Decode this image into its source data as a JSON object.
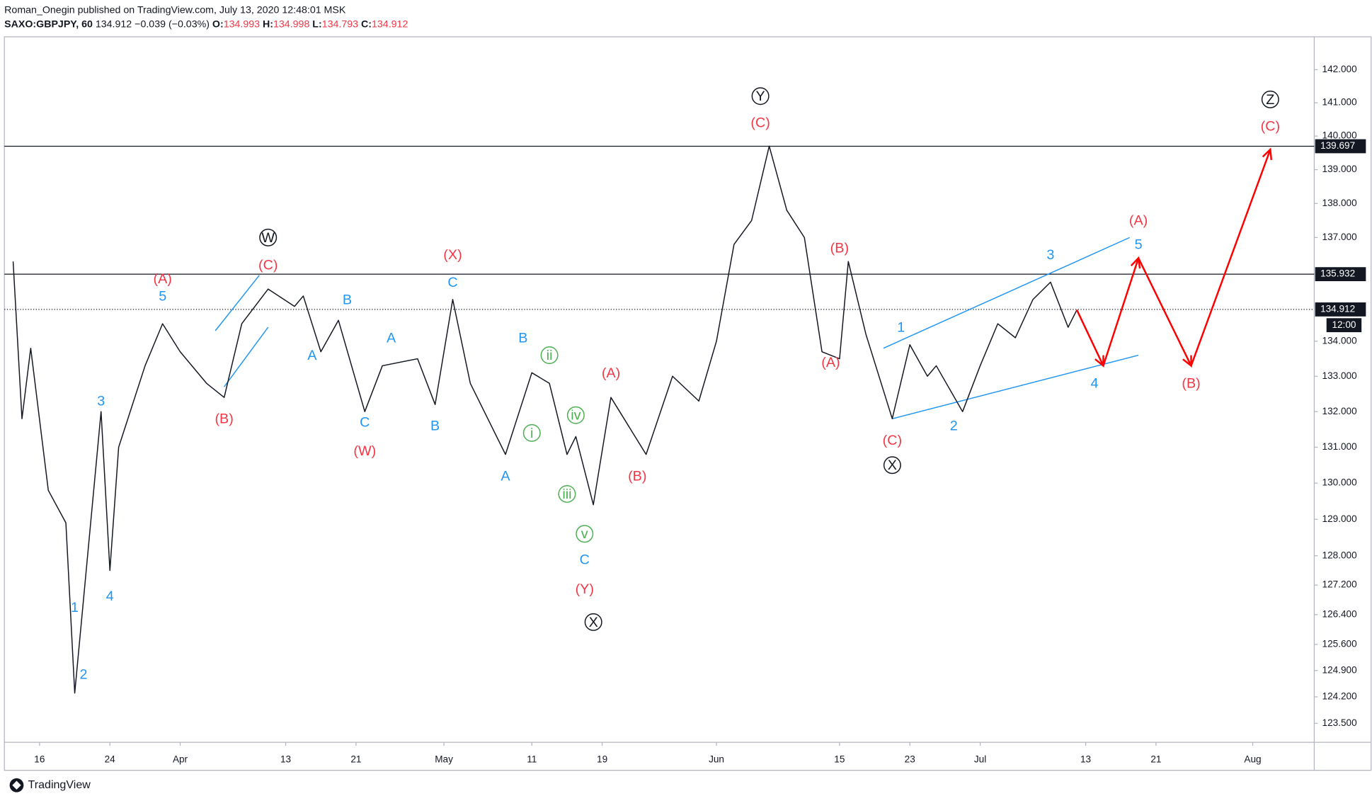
{
  "header": {
    "author_line": "Roman_Onegin published on TradingView.com, July 13, 2020 12:48:01 MSK",
    "symbol": "SAXO:GBPJPY, 60",
    "last": "134.912",
    "change": "−0.039 (−0.03%)",
    "ohlc": [
      {
        "label": "O:",
        "value": "134.993"
      },
      {
        "label": "H:",
        "value": "134.998"
      },
      {
        "label": "L:",
        "value": "134.793"
      },
      {
        "label": "C:",
        "value": "134.912"
      }
    ]
  },
  "footer": {
    "brand": "TradingView"
  },
  "chart_data": {
    "type": "line",
    "log_scale": true,
    "xlim": [
      "Mar 12",
      "Aug 8"
    ],
    "ylim": [
      123.0,
      143.0
    ],
    "xticks": [
      {
        "value": "Mar 16",
        "label": "16"
      },
      {
        "value": "Mar 24",
        "label": "24"
      },
      {
        "value": "Apr 1",
        "label": "Apr"
      },
      {
        "value": "Apr 13",
        "label": "13"
      },
      {
        "value": "Apr 21",
        "label": "21"
      },
      {
        "value": "May 1",
        "label": "May"
      },
      {
        "value": "May 11",
        "label": "11"
      },
      {
        "value": "May 19",
        "label": "19"
      },
      {
        "value": "Jun 1",
        "label": "Jun"
      },
      {
        "value": "Jun 15",
        "label": "15"
      },
      {
        "value": "Jun 23",
        "label": "23"
      },
      {
        "value": "Jul 1",
        "label": "Jul"
      },
      {
        "value": "Jul 13",
        "label": "13"
      },
      {
        "value": "Jul 21",
        "label": "21"
      },
      {
        "value": "Aug 1",
        "label": "Aug"
      }
    ],
    "yticks": [
      {
        "value": 142,
        "label": "142.000"
      },
      {
        "value": 141,
        "label": "141.000"
      },
      {
        "value": 140,
        "label": "140.000"
      },
      {
        "value": 139,
        "label": "139.000"
      },
      {
        "value": 138,
        "label": "138.000"
      },
      {
        "value": 137,
        "label": "137.000"
      },
      {
        "value": 134,
        "label": "134.000"
      },
      {
        "value": 133,
        "label": "133.000"
      },
      {
        "value": 132,
        "label": "132.000"
      },
      {
        "value": 131,
        "label": "131.000"
      },
      {
        "value": 130,
        "label": "130.000"
      },
      {
        "value": 129,
        "label": "129.000"
      },
      {
        "value": 128,
        "label": "128.000"
      },
      {
        "value": 127.2,
        "label": "127.200"
      },
      {
        "value": 126.4,
        "label": "126.400"
      },
      {
        "value": 125.6,
        "label": "125.600"
      },
      {
        "value": 124.9,
        "label": "124.900"
      },
      {
        "value": 124.2,
        "label": "124.200"
      },
      {
        "value": 123.5,
        "label": "123.500"
      }
    ],
    "series": [
      {
        "name": "GBPJPY",
        "color": "#131722",
        "x": [
          "Mar 13",
          "Mar 14",
          "Mar 15",
          "Mar 17",
          "Mar 19",
          "Mar 20",
          "Mar 21",
          "Mar 23",
          "Mar 24",
          "Mar 25",
          "Mar 28",
          "Mar 30",
          "Apr 1",
          "Apr 4",
          "Apr 6",
          "Apr 8",
          "Apr 11",
          "Apr 14",
          "Apr 15",
          "Apr 17",
          "Apr 19",
          "Apr 22",
          "Apr 24",
          "Apr 28",
          "Apr 30",
          "May 2",
          "May 4",
          "May 8",
          "May 11",
          "May 13",
          "May 15",
          "May 16",
          "May 18",
          "May 20",
          "May 24",
          "May 27",
          "May 30",
          "Jun 1",
          "Jun 3",
          "Jun 5",
          "Jun 7",
          "Jun 9",
          "Jun 11",
          "Jun 13",
          "Jun 15",
          "Jun 16",
          "Jun 18",
          "Jun 21",
          "Jun 23",
          "Jun 25",
          "Jun 26",
          "Jun 29",
          "Jul 1",
          "Jul 3",
          "Jul 5",
          "Jul 7",
          "Jul 9",
          "Jul 11",
          "Jul 12"
        ],
        "values": [
          136.3,
          131.8,
          133.8,
          129.8,
          128.9,
          124.3,
          126.8,
          132.0,
          127.6,
          131.0,
          133.3,
          134.5,
          133.7,
          132.8,
          132.4,
          134.5,
          135.5,
          135.0,
          135.3,
          133.7,
          134.6,
          132.0,
          133.3,
          133.5,
          132.2,
          135.2,
          132.8,
          130.8,
          133.1,
          132.8,
          130.8,
          131.3,
          129.4,
          132.4,
          130.8,
          133.0,
          132.3,
          134.0,
          136.8,
          137.5,
          139.7,
          137.8,
          137.0,
          133.7,
          133.5,
          136.3,
          134.2,
          131.8,
          133.9,
          133.0,
          133.3,
          132.0,
          133.3,
          134.5,
          134.1,
          135.2,
          135.7,
          134.4,
          134.9
        ]
      },
      {
        "name": "Projection",
        "color": "#ff0000",
        "x": [
          "Jul 12",
          "Jul 15",
          "Jul 19",
          "Jul 25",
          "Aug 3"
        ],
        "values": [
          134.9,
          133.3,
          136.4,
          133.3,
          139.6
        ]
      }
    ],
    "trendlines": [
      {
        "color": "#2196f3",
        "x": [
          "Apr 5",
          "Apr 10"
        ],
        "values": [
          134.3,
          135.9
        ]
      },
      {
        "color": "#2196f3",
        "x": [
          "Apr 6",
          "Apr 11"
        ],
        "values": [
          132.7,
          134.4
        ]
      },
      {
        "color": "#2196f3",
        "x": [
          "Jun 20",
          "Jul 18"
        ],
        "values": [
          133.8,
          137.0
        ]
      },
      {
        "color": "#2196f3",
        "x": [
          "Jun 21",
          "Jul 19"
        ],
        "values": [
          131.8,
          133.6
        ]
      }
    ],
    "hlines": [
      {
        "value": 139.697,
        "style": "solid",
        "label": "139.697"
      },
      {
        "value": 135.932,
        "style": "solid",
        "label": "135.932"
      },
      {
        "value": 134.912,
        "style": "dotted",
        "label": "134.912",
        "time": "12:00"
      }
    ],
    "annotation_groups": [
      {
        "color": "#f23645",
        "circled": false,
        "labels": [
          {
            "text": "(A)",
            "x": "Mar 30",
            "y": 135.8
          },
          {
            "text": "(C)",
            "x": "Apr 11",
            "y": 136.2
          },
          {
            "text": "(B)",
            "x": "Apr 6",
            "y": 131.8
          },
          {
            "text": "(X)",
            "x": "May 2",
            "y": 136.5
          },
          {
            "text": "(W)",
            "x": "Apr 22",
            "y": 130.9
          },
          {
            "text": "(A)",
            "x": "May 20",
            "y": 133.1
          },
          {
            "text": "(B)",
            "x": "May 23",
            "y": 130.2
          },
          {
            "text": "(Y)",
            "x": "May 17",
            "y": 127.1
          },
          {
            "text": "(C)",
            "x": "Jun 6",
            "y": 140.4
          },
          {
            "text": "(B)",
            "x": "Jun 15",
            "y": 136.7
          },
          {
            "text": "(A)",
            "x": "Jun 14",
            "y": 133.4
          },
          {
            "text": "(C)",
            "x": "Jun 21",
            "y": 131.2
          },
          {
            "text": "(A)",
            "x": "Jul 19",
            "y": 137.5
          },
          {
            "text": "(B)",
            "x": "Jul 25",
            "y": 132.8
          },
          {
            "text": "(C)",
            "x": "Aug 3",
            "y": 140.3
          }
        ]
      },
      {
        "color": "#2196f3",
        "circled": false,
        "labels": [
          {
            "text": "5",
            "x": "Mar 30",
            "y": 135.3
          },
          {
            "text": "3",
            "x": "Mar 23",
            "y": 132.3
          },
          {
            "text": "1",
            "x": "Mar 20",
            "y": 126.6
          },
          {
            "text": "2",
            "x": "Mar 21",
            "y": 124.8
          },
          {
            "text": "4",
            "x": "Mar 24",
            "y": 126.9
          },
          {
            "text": "A",
            "x": "Apr 16",
            "y": 133.6
          },
          {
            "text": "B",
            "x": "Apr 20",
            "y": 135.2
          },
          {
            "text": "C",
            "x": "Apr 22",
            "y": 131.7
          },
          {
            "text": "A",
            "x": "Apr 25",
            "y": 134.1
          },
          {
            "text": "B",
            "x": "Apr 30",
            "y": 131.6
          },
          {
            "text": "C",
            "x": "May 2",
            "y": 135.7
          },
          {
            "text": "A",
            "x": "May 8",
            "y": 130.2
          },
          {
            "text": "B",
            "x": "May 10",
            "y": 134.1
          },
          {
            "text": "C",
            "x": "May 17",
            "y": 127.9
          },
          {
            "text": "1",
            "x": "Jun 22",
            "y": 134.4
          },
          {
            "text": "2",
            "x": "Jun 28",
            "y": 131.6
          },
          {
            "text": "3",
            "x": "Jul 9",
            "y": 136.5
          },
          {
            "text": "5",
            "x": "Jul 19",
            "y": 136.8
          },
          {
            "text": "4",
            "x": "Jul 14",
            "y": 132.8
          }
        ]
      },
      {
        "color": "#4caf50",
        "circled": true,
        "labels": [
          {
            "text": "ii",
            "x": "May 13",
            "y": 133.6
          },
          {
            "text": "i",
            "x": "May 11",
            "y": 131.4
          },
          {
            "text": "iv",
            "x": "May 16",
            "y": 131.9
          },
          {
            "text": "iii",
            "x": "May 15",
            "y": 129.7
          },
          {
            "text": "v",
            "x": "May 17",
            "y": 128.6
          }
        ]
      },
      {
        "color": "#131722",
        "circled": true,
        "labels": [
          {
            "text": "W",
            "x": "Apr 11",
            "y": 137.0
          },
          {
            "text": "Y",
            "x": "Jun 6",
            "y": 141.2
          },
          {
            "text": "X",
            "x": "May 18",
            "y": 126.2
          },
          {
            "text": "X",
            "x": "Jun 21",
            "y": 130.5
          },
          {
            "text": "Z",
            "x": "Aug 3",
            "y": 141.1
          }
        ]
      }
    ]
  }
}
